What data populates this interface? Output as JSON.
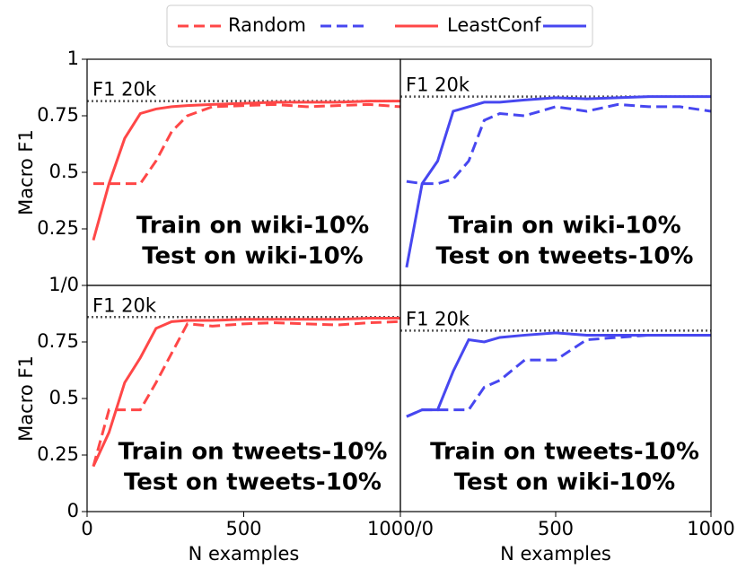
{
  "chart_data": [
    {
      "type": "line",
      "xlim": [
        0,
        1000
      ],
      "ylim": [
        0,
        1
      ],
      "yticks": [
        0.25,
        0.5,
        0.75,
        1
      ],
      "ylabel": "Macro F1",
      "hline": {
        "value": 0.815,
        "label": "F1 20k"
      },
      "text": [
        "Train on wiki-10%",
        "Test on wiki-10%"
      ],
      "x": [
        20,
        70,
        120,
        170,
        220,
        270,
        320,
        400,
        500,
        600,
        700,
        800,
        900,
        1000
      ],
      "series": [
        {
          "name": "Random",
          "color": "#ff4747",
          "style": "dashed",
          "values": [
            0.45,
            0.45,
            0.45,
            0.45,
            0.55,
            0.68,
            0.75,
            0.79,
            0.795,
            0.8,
            0.79,
            0.795,
            0.8,
            0.79
          ]
        },
        {
          "name": "LeastConf",
          "color": "#ff4747",
          "style": "solid",
          "values": [
            0.2,
            0.45,
            0.65,
            0.76,
            0.78,
            0.79,
            0.795,
            0.8,
            0.805,
            0.81,
            0.81,
            0.81,
            0.815,
            0.815
          ]
        }
      ]
    },
    {
      "type": "line",
      "xlim": [
        0,
        1000
      ],
      "ylim": [
        0,
        1
      ],
      "hline": {
        "value": 0.835,
        "label": "F1 20k"
      },
      "text": [
        "Train on wiki-10%",
        "Test on tweets-10%"
      ],
      "x": [
        20,
        70,
        120,
        170,
        220,
        270,
        320,
        400,
        500,
        600,
        700,
        800,
        900,
        1000
      ],
      "series": [
        {
          "name": "Random",
          "color": "#4747f0",
          "style": "dashed",
          "values": [
            0.46,
            0.45,
            0.45,
            0.47,
            0.55,
            0.73,
            0.76,
            0.75,
            0.79,
            0.77,
            0.8,
            0.79,
            0.79,
            0.77
          ]
        },
        {
          "name": "LeastConf",
          "color": "#4747f0",
          "style": "solid",
          "values": [
            0.08,
            0.45,
            0.55,
            0.77,
            0.79,
            0.81,
            0.81,
            0.82,
            0.83,
            0.825,
            0.83,
            0.835,
            0.835,
            0.835
          ]
        }
      ]
    },
    {
      "type": "line",
      "xlim": [
        0,
        1000
      ],
      "ylim": [
        0,
        1
      ],
      "xticks": [
        0,
        500,
        {
          "value": 1000,
          "label": "1000/0"
        }
      ],
      "yticks": [
        0,
        0.25,
        0.5,
        0.75,
        {
          "value": 1,
          "label": "1/0"
        }
      ],
      "ylabel": "Macro F1",
      "xlabel": "N examples",
      "hline": {
        "value": 0.86,
        "label": "F1 20k"
      },
      "text": [
        "Train on tweets-10%",
        "Test on tweets-10%"
      ],
      "x": [
        20,
        70,
        120,
        170,
        220,
        270,
        320,
        400,
        500,
        600,
        700,
        800,
        900,
        1000
      ],
      "series": [
        {
          "name": "Random",
          "color": "#ff4747",
          "style": "dashed",
          "values": [
            0.2,
            0.45,
            0.45,
            0.45,
            0.57,
            0.7,
            0.83,
            0.82,
            0.83,
            0.835,
            0.83,
            0.825,
            0.835,
            0.84
          ]
        },
        {
          "name": "LeastConf",
          "color": "#ff4747",
          "style": "solid",
          "values": [
            0.2,
            0.35,
            0.57,
            0.68,
            0.81,
            0.84,
            0.845,
            0.845,
            0.85,
            0.85,
            0.85,
            0.85,
            0.855,
            0.855
          ]
        }
      ]
    },
    {
      "type": "line",
      "xlim": [
        0,
        1000
      ],
      "ylim": [
        0,
        1
      ],
      "xticks": [
        500,
        1000
      ],
      "xlabel": "N examples",
      "hline": {
        "value": 0.8,
        "label": "F1 20k"
      },
      "text": [
        "Train on tweets-10%",
        "Test on wiki-10%"
      ],
      "x": [
        20,
        70,
        120,
        170,
        220,
        270,
        320,
        400,
        500,
        600,
        700,
        800,
        900,
        1000
      ],
      "series": [
        {
          "name": "Random",
          "color": "#4747f0",
          "style": "dashed",
          "values": [
            0.42,
            0.45,
            0.45,
            0.45,
            0.45,
            0.55,
            0.58,
            0.67,
            0.67,
            0.76,
            0.77,
            0.78,
            0.78,
            0.78
          ]
        },
        {
          "name": "LeastConf",
          "color": "#4747f0",
          "style": "solid",
          "values": [
            0.42,
            0.45,
            0.45,
            0.62,
            0.76,
            0.75,
            0.77,
            0.78,
            0.79,
            0.78,
            0.78,
            0.78,
            0.78,
            0.78
          ]
        }
      ]
    }
  ]
}
